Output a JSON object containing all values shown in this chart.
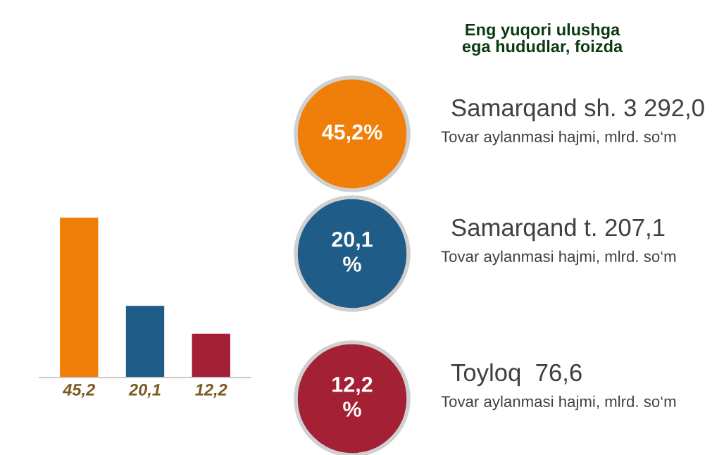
{
  "chart_data": [
    {
      "type": "bar",
      "categories": [
        null,
        null,
        null
      ],
      "values": [
        45.2,
        20.1,
        12.2
      ],
      "value_labels": [
        "45,2",
        "20,1",
        "12,2"
      ],
      "colors": [
        "#f07f09",
        "#1f5c87",
        "#a32035"
      ]
    },
    {
      "type": "other",
      "title": "Eng yuqori ulushga\nega hududlar, foizda",
      "annotations": [
        "45,2%",
        "Samarqand sh. 3 292,0",
        "Tovar aylanmasi hajmi, mlrd. so‘m",
        "20,1\n%",
        "Samarqand t. 207,1",
        "Tovar aylanmasi hajmi, mlrd. so‘m",
        "12,2\n%",
        "Toyloq  76,6",
        "Tovar aylanmasi hajmi, mlrd. so‘m"
      ]
    }
  ]
}
